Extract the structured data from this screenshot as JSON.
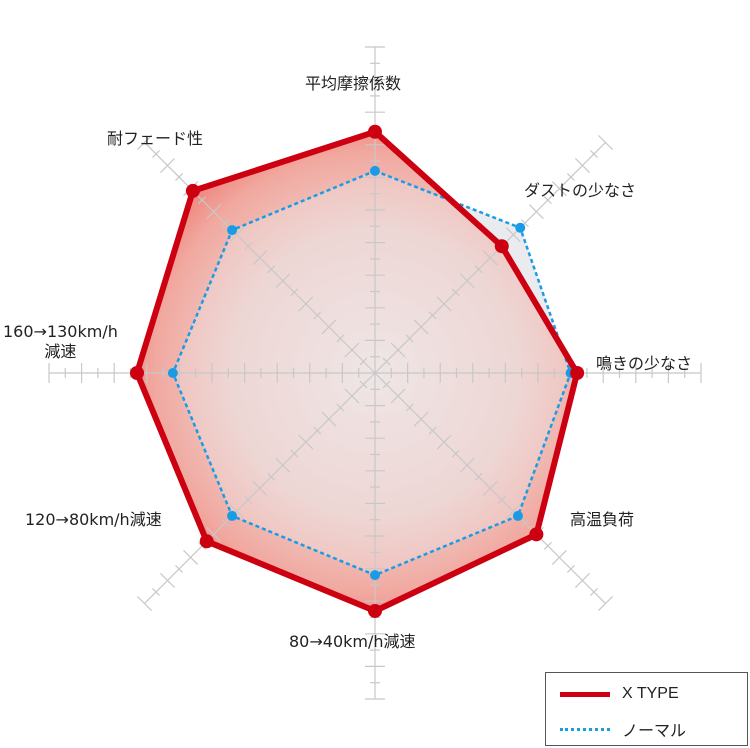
{
  "chart_data": {
    "type": "radar",
    "title": "",
    "scale": {
      "min": 0,
      "max": 10,
      "major_step": 1,
      "minor_step": 0.5
    },
    "categories": [
      "平均摩擦係数",
      "ダストの少なさ",
      "鳴きの少なさ",
      "高温負荷",
      "80→40km/h減速",
      "120→80km/h減速",
      "160→130km/h減速",
      "耐フェード性"
    ],
    "series": [
      {
        "name": "X TYPE",
        "color": "#cc0011",
        "style": "solid",
        "values": [
          7.4,
          5.5,
          6.2,
          7.0,
          7.3,
          7.3,
          7.3,
          7.9
        ]
      },
      {
        "name": "ノーマル",
        "color": "#1a9be6",
        "style": "dotted",
        "values": [
          6.2,
          6.3,
          6.0,
          6.2,
          6.2,
          6.2,
          6.2,
          6.2
        ]
      }
    ],
    "legend_position": "bottom-right",
    "grid": true
  },
  "labels": {
    "top": "平均摩擦係数",
    "top_right": "ダストの少なさ",
    "right": "鳴きの少なさ",
    "bottom_right": "高温負荷",
    "bottom": "80→40km/h減速",
    "bottom_left": "120→80km/h減速",
    "left_line1": "160→130km/h",
    "left_line2": "減速",
    "top_left": "耐フェード性"
  },
  "legend": {
    "x_type": "X TYPE",
    "normal": "ノーマル"
  }
}
